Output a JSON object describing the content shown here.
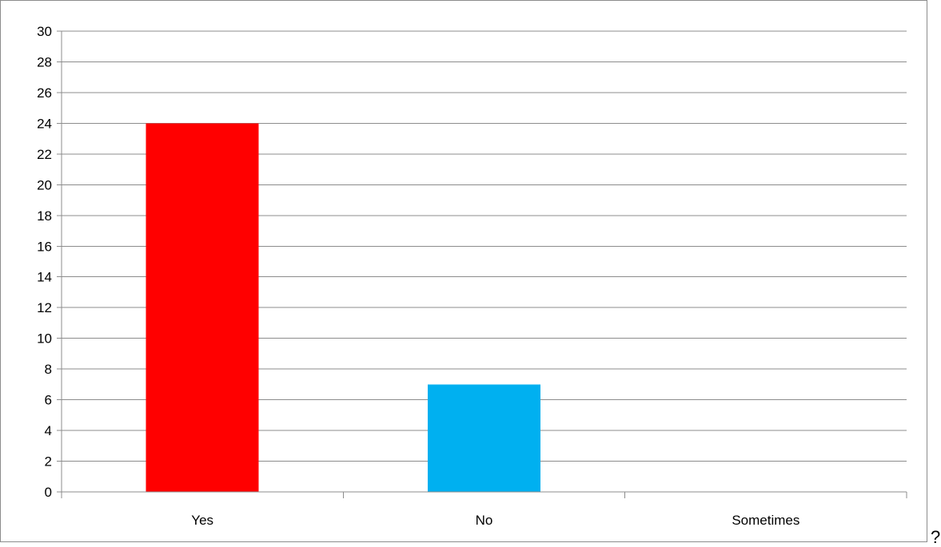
{
  "chart_data": {
    "type": "bar",
    "categories": [
      "Yes",
      "No",
      "Sometimes"
    ],
    "values": [
      24,
      7,
      0
    ],
    "colors": [
      "#ff0000",
      "#00b0f0",
      "#00b0f0"
    ],
    "ylim": [
      0,
      30
    ],
    "ytick_step": 2,
    "yticks": [
      "0",
      "2",
      "4",
      "6",
      "8",
      "10",
      "12",
      "14",
      "16",
      "18",
      "20",
      "22",
      "24",
      "26",
      "28",
      "30"
    ],
    "grid": true,
    "legend": "none",
    "title": "",
    "xlabel": "",
    "ylabel": ""
  },
  "trailing_text": "?",
  "colors": {
    "gridline": "#8c8c8c",
    "frame": "#8c8c8c"
  }
}
